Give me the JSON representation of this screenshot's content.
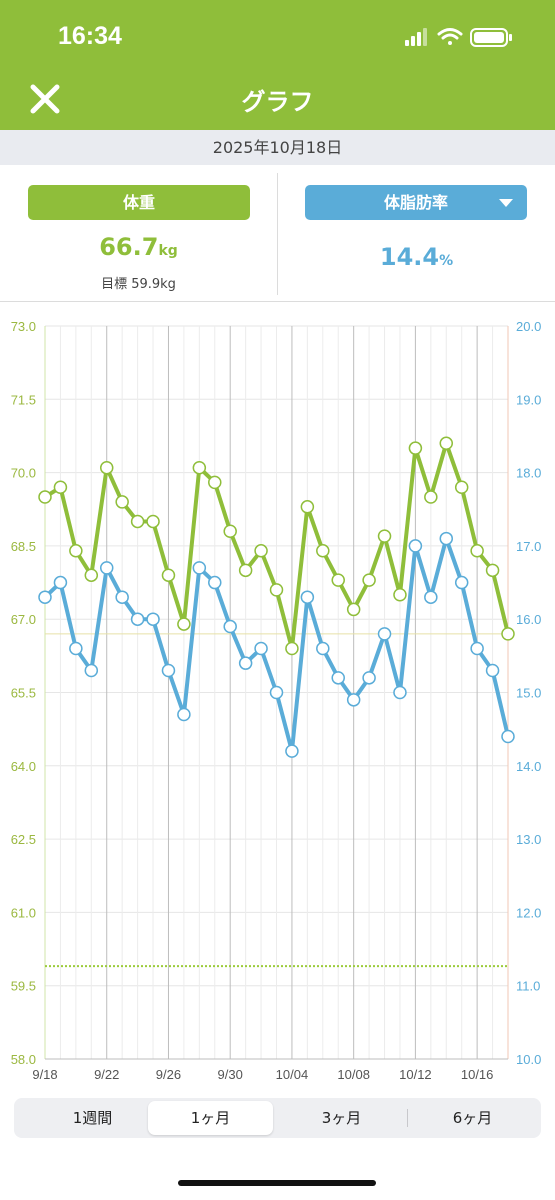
{
  "status": {
    "time": "16:34"
  },
  "nav": {
    "title": "グラフ",
    "close_icon": "close-icon"
  },
  "date": "2025年10月18日",
  "weight": {
    "label": "体重",
    "value": "66.7",
    "unit": "kg",
    "goal": "目標 59.9kg",
    "color": "#8fbe3a"
  },
  "bodyfat": {
    "label": "体脂肪率",
    "value": "14.4",
    "unit": "%",
    "color": "#5aacd8"
  },
  "period_tabs": [
    {
      "label": "1週間",
      "active": false
    },
    {
      "label": "1ヶ月",
      "active": true
    },
    {
      "label": "3ヶ月",
      "active": false
    },
    {
      "label": "6ヶ月",
      "active": false
    }
  ],
  "chart_data": {
    "type": "line",
    "x": [
      "9/18",
      "9/19",
      "9/20",
      "9/21",
      "9/22",
      "9/23",
      "9/24",
      "9/25",
      "9/26",
      "9/27",
      "9/28",
      "9/29",
      "9/30",
      "10/01",
      "10/02",
      "10/03",
      "10/04",
      "10/05",
      "10/06",
      "10/07",
      "10/08",
      "10/09",
      "10/10",
      "10/11",
      "10/12",
      "10/13",
      "10/14",
      "10/15",
      "10/16",
      "10/17",
      "10/18"
    ],
    "x_tick_labels": [
      "9/18",
      "9/22",
      "9/26",
      "9/30",
      "10/04",
      "10/08",
      "10/12",
      "10/16"
    ],
    "y_left": {
      "ticks": [
        "73.0",
        "71.5",
        "70.0",
        "68.5",
        "67.0",
        "65.5",
        "64.0",
        "62.5",
        "61.0",
        "59.5",
        "58.0"
      ],
      "ylim": [
        58.0,
        73.0
      ]
    },
    "y_right": {
      "ticks": [
        "20.0",
        "19.0",
        "18.0",
        "17.0",
        "16.0",
        "15.0",
        "14.0",
        "13.0",
        "12.0",
        "11.0",
        "10.0"
      ],
      "ylim": [
        10.0,
        20.0
      ]
    },
    "series": [
      {
        "values": [
          69.5,
          69.7,
          68.4,
          67.9,
          70.1,
          69.4,
          69.0,
          69.0,
          67.9,
          66.9,
          70.1,
          69.8,
          68.8,
          68.0,
          68.4,
          67.6,
          66.4,
          69.3,
          68.4,
          67.8,
          67.2,
          67.8,
          68.7,
          67.5,
          70.5,
          69.5,
          70.6,
          69.7,
          68.4,
          68.0,
          66.7
        ]
      },
      {
        "values": [
          16.3,
          16.5,
          15.6,
          15.3,
          16.7,
          16.3,
          16.0,
          16.0,
          15.3,
          14.7,
          16.7,
          16.5,
          15.9,
          15.4,
          15.6,
          15.0,
          14.2,
          16.3,
          15.6,
          15.2,
          14.9,
          15.2,
          15.8,
          15.0,
          17.0,
          16.3,
          17.1,
          16.5,
          15.6,
          15.3,
          14.4
        ]
      }
    ],
    "reference_lines": [
      {
        "axis": "left",
        "value": 66.7,
        "style": "solid"
      },
      {
        "axis": "left",
        "value": 59.9,
        "style": "dotted"
      }
    ],
    "grid": true
  }
}
